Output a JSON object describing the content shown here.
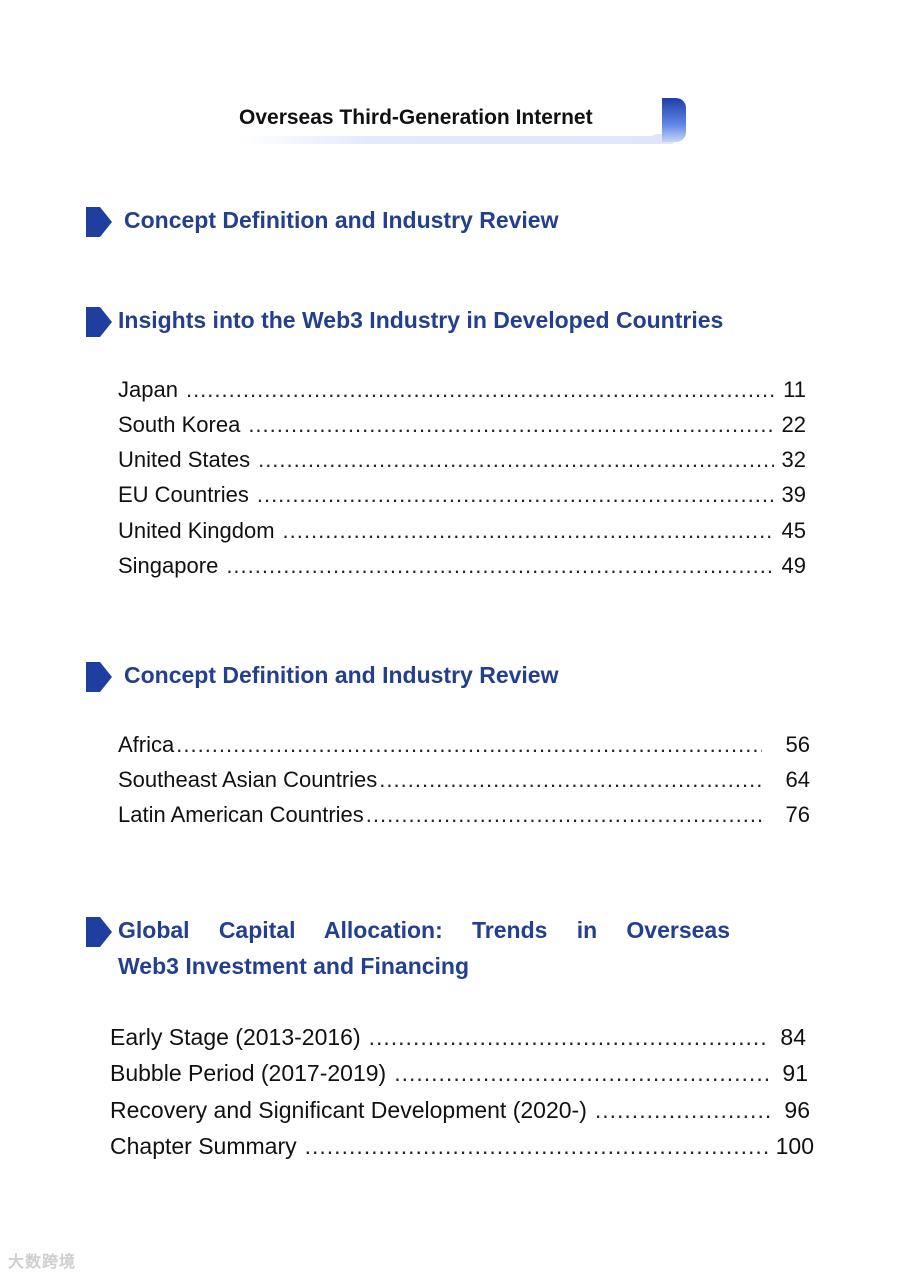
{
  "header": {
    "title": "Overseas Third-Generation Internet"
  },
  "sections": [
    {
      "heading": "Concept Definition and Industry Review",
      "entries": []
    },
    {
      "heading": "Insights into the Web3 Industry in Developed Countries",
      "entries": [
        {
          "label": "Japan",
          "page": "11"
        },
        {
          "label": "South Korea",
          "page": "22"
        },
        {
          "label": "United States",
          "page": "32"
        },
        {
          "label": "EU Countries",
          "page": "39"
        },
        {
          "label": "United Kingdom",
          "page": "45"
        },
        {
          "label": "Singapore",
          "page": "49"
        }
      ]
    },
    {
      "heading": "Concept Definition and Industry Review",
      "entries": [
        {
          "label": "Africa",
          "page": "56"
        },
        {
          "label": "Southeast Asian Countries",
          "page": "64"
        },
        {
          "label": "Latin American Countries",
          "page": "76"
        }
      ]
    },
    {
      "heading_line1": "Global Capital Allocation: Trends in Overseas",
      "heading_line2": "Web3 Investment and Financing",
      "entries": [
        {
          "label": "Early Stage (2013-2016)",
          "page": "84"
        },
        {
          "label": "Bubble Period (2017-2019)",
          "page": "91"
        },
        {
          "label": "Recovery and Significant Development (2020-)",
          "page": "96"
        },
        {
          "label": "Chapter Summary",
          "page": "100"
        }
      ]
    }
  ],
  "watermark": {
    "text": "大数跨境"
  },
  "colors": {
    "heading": "#233f8f",
    "arrow": "#1e3fa0"
  },
  "icons": {
    "section_marker": "arrow-bookmark-icon"
  }
}
